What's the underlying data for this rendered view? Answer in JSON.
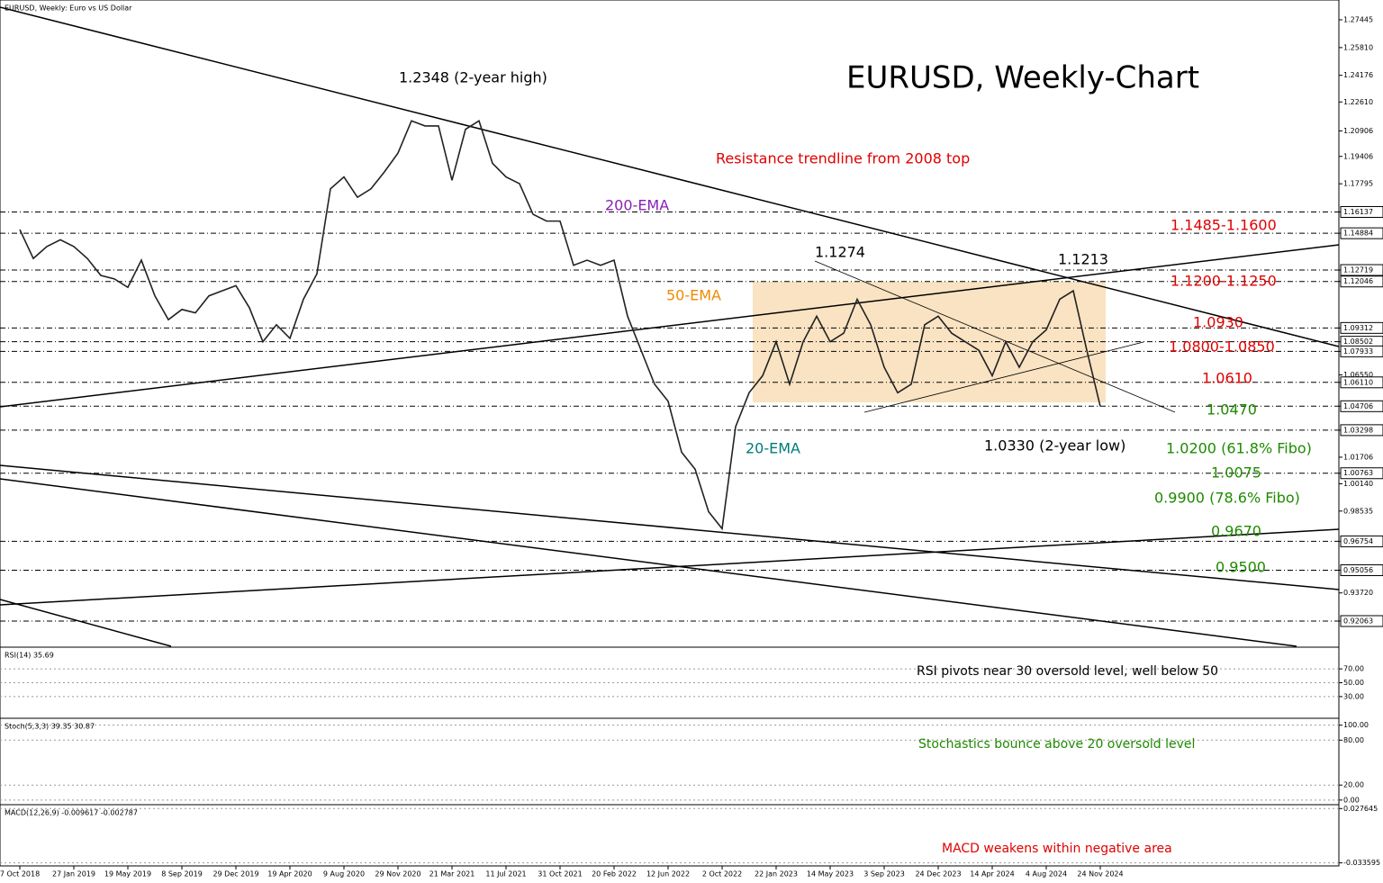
{
  "chart_data": {
    "type": "line",
    "header": "EURUSD, Weekly:  Euro vs US Dollar",
    "title": "EURUSD, Weekly-Chart",
    "color": "#222222",
    "categories": [
      "7 Oct 2018",
      null,
      null,
      null,
      "27 Jan 2019",
      null,
      null,
      null,
      "19 May 2019",
      null,
      null,
      null,
      "8 Sep 2019",
      null,
      null,
      null,
      "29 Dec 2019",
      null,
      null,
      null,
      "19 Apr 2020",
      null,
      null,
      null,
      "9 Aug 2020",
      null,
      null,
      null,
      "29 Nov 2020",
      null,
      null,
      null,
      "21 Mar 2021",
      null,
      null,
      null,
      "11 Jul 2021",
      null,
      null,
      null,
      "31 Oct 2021",
      null,
      null,
      null,
      "20 Feb 2022",
      null,
      null,
      null,
      "12 Jun 2022",
      null,
      null,
      null,
      "2 Oct 2022",
      null,
      null,
      null,
      "22 Jan 2023",
      null,
      null,
      null,
      "14 May 2023",
      null,
      null,
      null,
      "3 Sep 2023",
      null,
      null,
      null,
      "24 Dec 2023",
      null,
      null,
      null,
      "14 Apr 2024",
      null,
      null,
      null,
      "4 Aug 2024",
      null,
      null,
      null,
      "24 Nov 2024"
    ],
    "values": [
      1.151,
      1.134,
      1.141,
      1.145,
      1.141,
      1.134,
      1.124,
      1.122,
      1.117,
      1.133,
      1.112,
      1.098,
      1.104,
      1.102,
      1.112,
      1.115,
      1.118,
      1.105,
      1.085,
      1.095,
      1.087,
      1.11,
      1.125,
      1.175,
      1.182,
      1.17,
      1.175,
      1.185,
      1.196,
      1.215,
      1.212,
      1.212,
      1.18,
      1.21,
      1.215,
      1.19,
      1.182,
      1.178,
      1.16,
      1.156,
      1.156,
      1.13,
      1.133,
      1.13,
      1.133,
      1.1,
      1.08,
      1.06,
      1.05,
      1.02,
      1.01,
      0.985,
      0.975,
      1.035,
      1.055,
      1.065,
      1.085,
      1.06,
      1.085,
      1.1,
      1.085,
      1.09,
      1.11,
      1.095,
      1.07,
      1.055,
      1.06,
      1.095,
      1.1,
      1.09,
      1.085,
      1.08,
      1.065,
      1.085,
      1.07,
      1.085,
      1.092,
      1.11,
      1.115,
      1.08,
      1.047
    ],
    "ylim": [
      0.9058,
      1.2861
    ],
    "yticks": [
      1.27445,
      {
        "value": 1.2581,
        "label": "1.25810"
      },
      1.24176,
      {
        "value": 1.2261,
        "label": "1.22610"
      },
      1.20906,
      1.19406,
      1.17795,
      {
        "value": 1.0655,
        "label": "1.06550"
      },
      1.01706,
      {
        "value": 1.0014,
        "label": "1.00140"
      },
      0.98535,
      {
        "value": 0.9372,
        "label": "0.93720"
      }
    ],
    "level_ticks": [
      1.16137,
      1.14884,
      1.12719,
      1.12046,
      1.09312,
      1.08502,
      1.07933,
      {
        "value": 1.0611,
        "label": "1.06110"
      },
      1.04706,
      1.03298,
      1.00763,
      0.96754,
      0.95056,
      0.92063
    ],
    "annotations": [
      {
        "text": "1.2348 (2-year high)",
        "color": "#000000"
      },
      {
        "text": "Resistance trendline from 2008 top",
        "color": "#e00000"
      },
      {
        "text": "200-EMA",
        "color": "#8a1fb5"
      },
      {
        "text": "50-EMA",
        "color": "#f08a00"
      },
      {
        "text": "20-EMA",
        "color": "#007a7a"
      },
      {
        "text": "1.1274",
        "color": "#000000"
      },
      {
        "text": "1.1213",
        "color": "#000000"
      },
      {
        "text": "1.1485-1.1600",
        "color": "#e00000"
      },
      {
        "text": "1.1200-1.1250",
        "color": "#e00000"
      },
      {
        "text": "1.0930",
        "color": "#e00000"
      },
      {
        "text": "1.0800-1.0850",
        "color": "#e00000"
      },
      {
        "text": "1.0610",
        "color": "#e00000"
      },
      {
        "text": "1.0470",
        "color": "#1e8a00"
      },
      {
        "text": "1.0330 (2-year low)",
        "color": "#000000"
      },
      {
        "text": "1.0200 (61.8% Fibo)",
        "color": "#1e8a00"
      },
      {
        "text": "1.0075",
        "color": "#1e8a00"
      },
      {
        "text": "0.9900 (78.6% Fibo)",
        "color": "#1e8a00"
      },
      {
        "text": "0.9670",
        "color": "#1e8a00"
      },
      {
        "text": "0.9500",
        "color": "#1e8a00"
      }
    ],
    "panels": [
      {
        "header": "RSI(14) 35.69",
        "note": "RSI pivots near 30 oversold level, well below 50",
        "note_color": "#000000",
        "ylim": [
          0,
          100
        ],
        "yticks": [
          {
            "value": 70,
            "label": "70.00"
          },
          {
            "value": 50,
            "label": "50.00"
          },
          {
            "value": 30,
            "label": "30.00"
          }
        ]
      },
      {
        "header": "Stoch(5,3,3) 39.35 30.87",
        "note": "Stochastics bounce above 20 oversold level",
        "note_color": "#1e8a00",
        "ylim": [
          -5,
          108
        ],
        "yticks": [
          {
            "value": 100,
            "label": "100.00"
          },
          {
            "value": 80,
            "label": "80.00"
          },
          {
            "value": 20,
            "label": "20.00"
          },
          {
            "value": 0,
            "label": "0.00"
          }
        ]
      },
      {
        "header": "MACD(12,26,9) -0.009617 -0.002787",
        "note": "MACD weakens within negative area",
        "note_color": "#e00000",
        "ylim": [
          -0.036,
          0.031
        ],
        "yticks": [
          0.027645,
          -0.033595
        ]
      }
    ]
  }
}
